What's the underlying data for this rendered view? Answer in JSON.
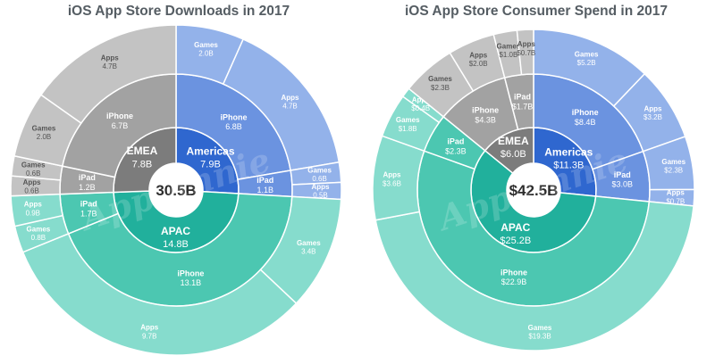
{
  "chart_data": [
    {
      "type": "sunburst",
      "title": "iOS App Store Downloads in 2017",
      "center_label": "30.5B",
      "regions": [
        {
          "name": "Americas",
          "value_label": "7.9B",
          "value": 7.9,
          "color": "#2f67cf",
          "devices": [
            {
              "name": "iPhone",
              "value_label": "6.8B",
              "value": 6.8,
              "color": "#6b93e0",
              "categories": [
                {
                  "name": "Games",
                  "value_label": "2.0B",
                  "value": 2.0
                },
                {
                  "name": "Apps",
                  "value_label": "4.7B",
                  "value": 4.7
                }
              ]
            },
            {
              "name": "iPad",
              "value_label": "1.1B",
              "value": 1.1,
              "color": "#6b93e0",
              "categories": [
                {
                  "name": "Games",
                  "value_label": "0.6B",
                  "value": 0.6
                },
                {
                  "name": "Apps",
                  "value_label": "0.5B",
                  "value": 0.5
                }
              ]
            }
          ]
        },
        {
          "name": "APAC",
          "value_label": "14.8B",
          "value": 14.8,
          "color": "#21b09c",
          "devices": [
            {
              "name": "iPhone",
              "value_label": "13.1B",
              "value": 13.1,
              "color": "#4cc7b1",
              "categories": [
                {
                  "name": "Games",
                  "value_label": "3.4B",
                  "value": 3.4
                },
                {
                  "name": "Apps",
                  "value_label": "9.7B",
                  "value": 9.7
                }
              ]
            },
            {
              "name": "iPad",
              "value_label": "1.7B",
              "value": 1.7,
              "color": "#4cc7b1",
              "categories": [
                {
                  "name": "Games",
                  "value_label": "0.8B",
                  "value": 0.8
                },
                {
                  "name": "Apps",
                  "value_label": "0.9B",
                  "value": 0.9
                }
              ]
            }
          ]
        },
        {
          "name": "EMEA",
          "value_label": "7.8B",
          "value": 7.8,
          "color": "#7c7c7c",
          "devices": [
            {
              "name": "iPad",
              "value_label": "1.2B",
              "value": 1.2,
              "color": "#a2a2a2",
              "categories": [
                {
                  "name": "Apps",
                  "value_label": "0.6B",
                  "value": 0.6
                },
                {
                  "name": "Games",
                  "value_label": "0.6B",
                  "value": 0.6
                }
              ]
            },
            {
              "name": "iPhone",
              "value_label": "6.7B",
              "value": 6.7,
              "color": "#a2a2a2",
              "categories": [
                {
                  "name": "Games",
                  "value_label": "2.0B",
                  "value": 2.0
                },
                {
                  "name": "Apps",
                  "value_label": "4.7B",
                  "value": 4.7
                }
              ]
            }
          ]
        }
      ]
    },
    {
      "type": "sunburst",
      "title": "iOS App Store Consumer Spend in 2017",
      "center_label": "$42.5B",
      "regions": [
        {
          "name": "Americas",
          "value_label": "$11.3B",
          "value": 11.3,
          "color": "#2f67cf",
          "devices": [
            {
              "name": "iPhone",
              "value_label": "$8.4B",
              "value": 8.4,
              "color": "#6b93e0",
              "categories": [
                {
                  "name": "Games",
                  "value_label": "$5.2B",
                  "value": 5.2
                },
                {
                  "name": "Apps",
                  "value_label": "$3.2B",
                  "value": 3.2
                }
              ]
            },
            {
              "name": "iPad",
              "value_label": "$3.0B",
              "value": 3.0,
              "color": "#6b93e0",
              "categories": [
                {
                  "name": "Games",
                  "value_label": "$2.3B",
                  "value": 2.3
                },
                {
                  "name": "Apps",
                  "value_label": "$0.7B",
                  "value": 0.7
                }
              ]
            }
          ]
        },
        {
          "name": "APAC",
          "value_label": "$25.2B",
          "value": 25.2,
          "color": "#21b09c",
          "devices": [
            {
              "name": "iPhone",
              "value_label": "$22.9B",
              "value": 22.9,
              "color": "#4cc7b1",
              "categories": [
                {
                  "name": "Games",
                  "value_label": "$19.3B",
                  "value": 19.3
                },
                {
                  "name": "Apps",
                  "value_label": "$3.6B",
                  "value": 3.6
                }
              ]
            },
            {
              "name": "iPad",
              "value_label": "$2.3B",
              "value": 2.3,
              "color": "#4cc7b1",
              "categories": [
                {
                  "name": "Games",
                  "value_label": "$1.8B",
                  "value": 1.8
                },
                {
                  "name": "Apps",
                  "value_label": "$0.4B",
                  "value": 0.4
                }
              ]
            }
          ]
        },
        {
          "name": "EMEA",
          "value_label": "$6.0B",
          "value": 6.0,
          "color": "#7c7c7c",
          "devices": [
            {
              "name": "iPhone",
              "value_label": "$4.3B",
              "value": 4.3,
              "color": "#a2a2a2",
              "categories": [
                {
                  "name": "Games",
                  "value_label": "$2.3B",
                  "value": 2.3
                },
                {
                  "name": "Apps",
                  "value_label": "$2.0B",
                  "value": 2.0
                }
              ]
            },
            {
              "name": "iPad",
              "value_label": "$1.7B",
              "value": 1.7,
              "color": "#a2a2a2",
              "categories": [
                {
                  "name": "Games",
                  "value_label": "$1.0B",
                  "value": 1.0
                },
                {
                  "name": "Apps",
                  "value_label": "$0.7B",
                  "value": 0.7
                }
              ]
            }
          ]
        }
      ]
    }
  ],
  "ring_colors": {
    "Americas": "#93b2ea",
    "APAC": "#86dccd",
    "EMEA": "#c3c3c3"
  },
  "watermark": "App Annie"
}
